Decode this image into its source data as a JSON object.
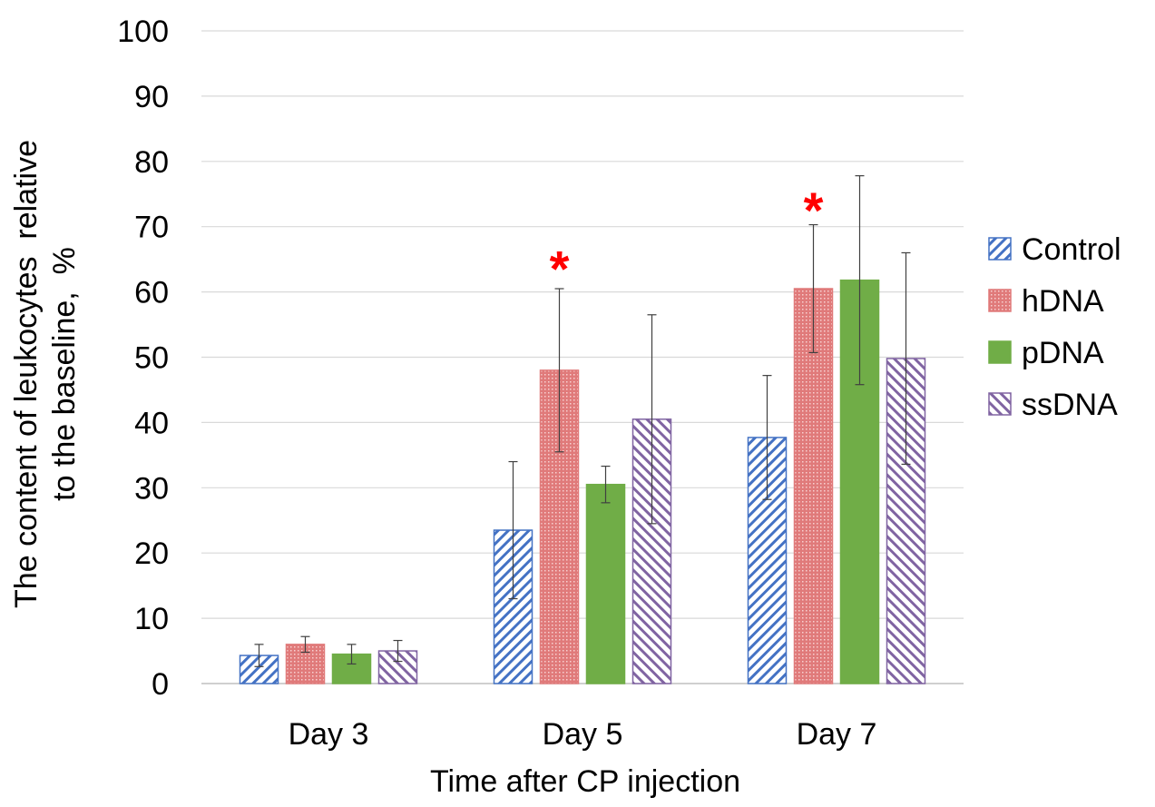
{
  "chart_data": {
    "type": "bar",
    "title": "",
    "xlabel": "Time after CP injection",
    "ylabel_lines": [
      "The content of leukocytes  relative",
      "to the baseline,  %"
    ],
    "ylim": [
      0,
      100
    ],
    "yticks": [
      "0",
      "10",
      "20",
      "30",
      "40",
      "50",
      "60",
      "70",
      "80",
      "90",
      "100"
    ],
    "grid": true,
    "legend_position": "right",
    "categories": [
      "Day 3",
      "Day 5",
      "Day 7"
    ],
    "series": [
      {
        "name": "Control",
        "values": [
          4.3,
          23.5,
          37.7
        ],
        "errors": [
          1.7,
          10.5,
          9.5
        ],
        "color": "#4472c4",
        "pattern": "diag-right"
      },
      {
        "name": "hDNA",
        "values": [
          6.0,
          48.0,
          60.5
        ],
        "errors": [
          1.2,
          12.5,
          9.8
        ],
        "color": "#e07a7a",
        "pattern": "dots"
      },
      {
        "name": "pDNA",
        "values": [
          4.5,
          30.5,
          61.8
        ],
        "errors": [
          1.5,
          2.8,
          16.0
        ],
        "color": "#70ad47",
        "pattern": "solid"
      },
      {
        "name": "ssDNA",
        "values": [
          5.0,
          40.5,
          49.8
        ],
        "errors": [
          1.6,
          16.0,
          16.2
        ],
        "color": "#8064a2",
        "pattern": "diag-left"
      }
    ],
    "annotations": [
      {
        "text": "*",
        "category": "Day 5",
        "series": "hDNA",
        "y": 65
      },
      {
        "text": "*",
        "category": "Day 7",
        "series": "hDNA",
        "y": 74
      }
    ]
  }
}
